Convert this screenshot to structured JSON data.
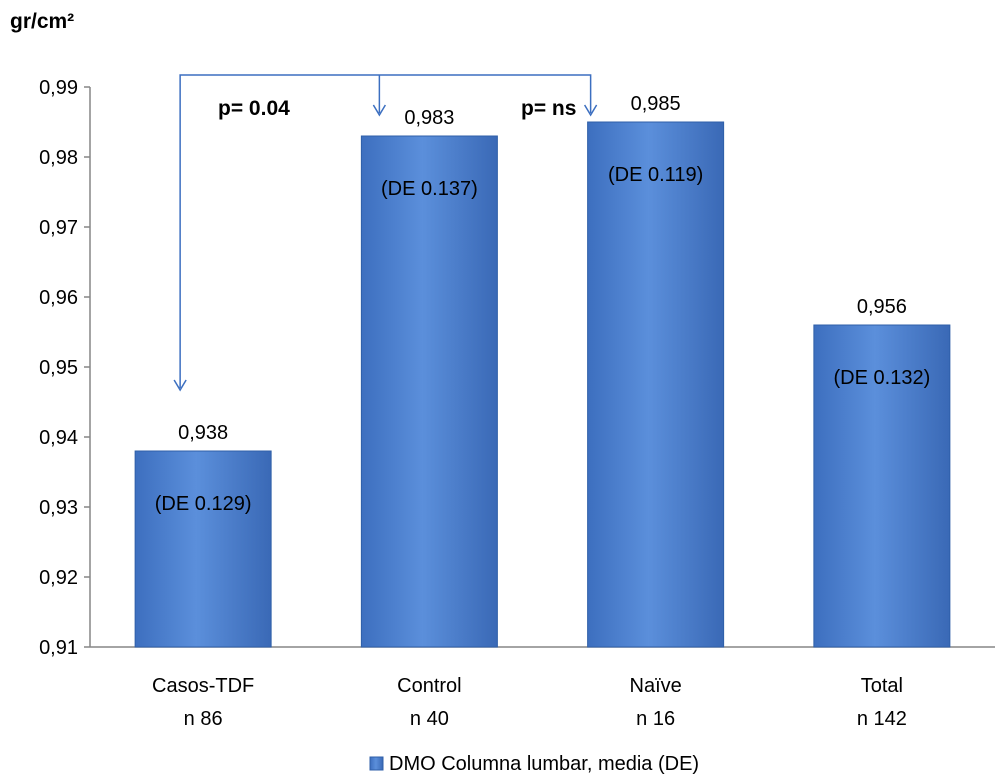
{
  "chart_data": {
    "type": "bar",
    "ylabel": "gr/cm²",
    "ylim": [
      0.91,
      0.99
    ],
    "yticks": [
      "0,91",
      "0,92",
      "0,93",
      "0,94",
      "0,95",
      "0,96",
      "0,97",
      "0,98",
      "0,99"
    ],
    "categories": [
      {
        "line1": "Casos-TDF",
        "line2": "n 86"
      },
      {
        "line1": "Control",
        "line2": "n 40"
      },
      {
        "line1": "Naïve",
        "line2": "n 16"
      },
      {
        "line1": "Total",
        "line2": "n 142"
      }
    ],
    "series": [
      {
        "name": "DMO Columna lumbar, media (DE)",
        "values": [
          0.938,
          0.983,
          0.985,
          0.956
        ],
        "value_labels": [
          "0,938",
          "0,983",
          "0,985",
          "0,956"
        ],
        "sd_labels": [
          "(DE 0.129)",
          "(DE 0.137)",
          "(DE 0.119)",
          "(DE 0.132)"
        ]
      }
    ],
    "annotations": [
      {
        "text": "p= 0.04",
        "from": "Casos-TDF",
        "to": "Control"
      },
      {
        "text": "p= ns",
        "from": "Casos-TDF",
        "to": "Naïve"
      }
    ],
    "colors": {
      "bar": "#4a7fcf",
      "bar_dark": "#2f5fa8",
      "arrow": "#3c6fc0",
      "axis": "#868686"
    },
    "grid": false,
    "legend_position": "bottom"
  }
}
